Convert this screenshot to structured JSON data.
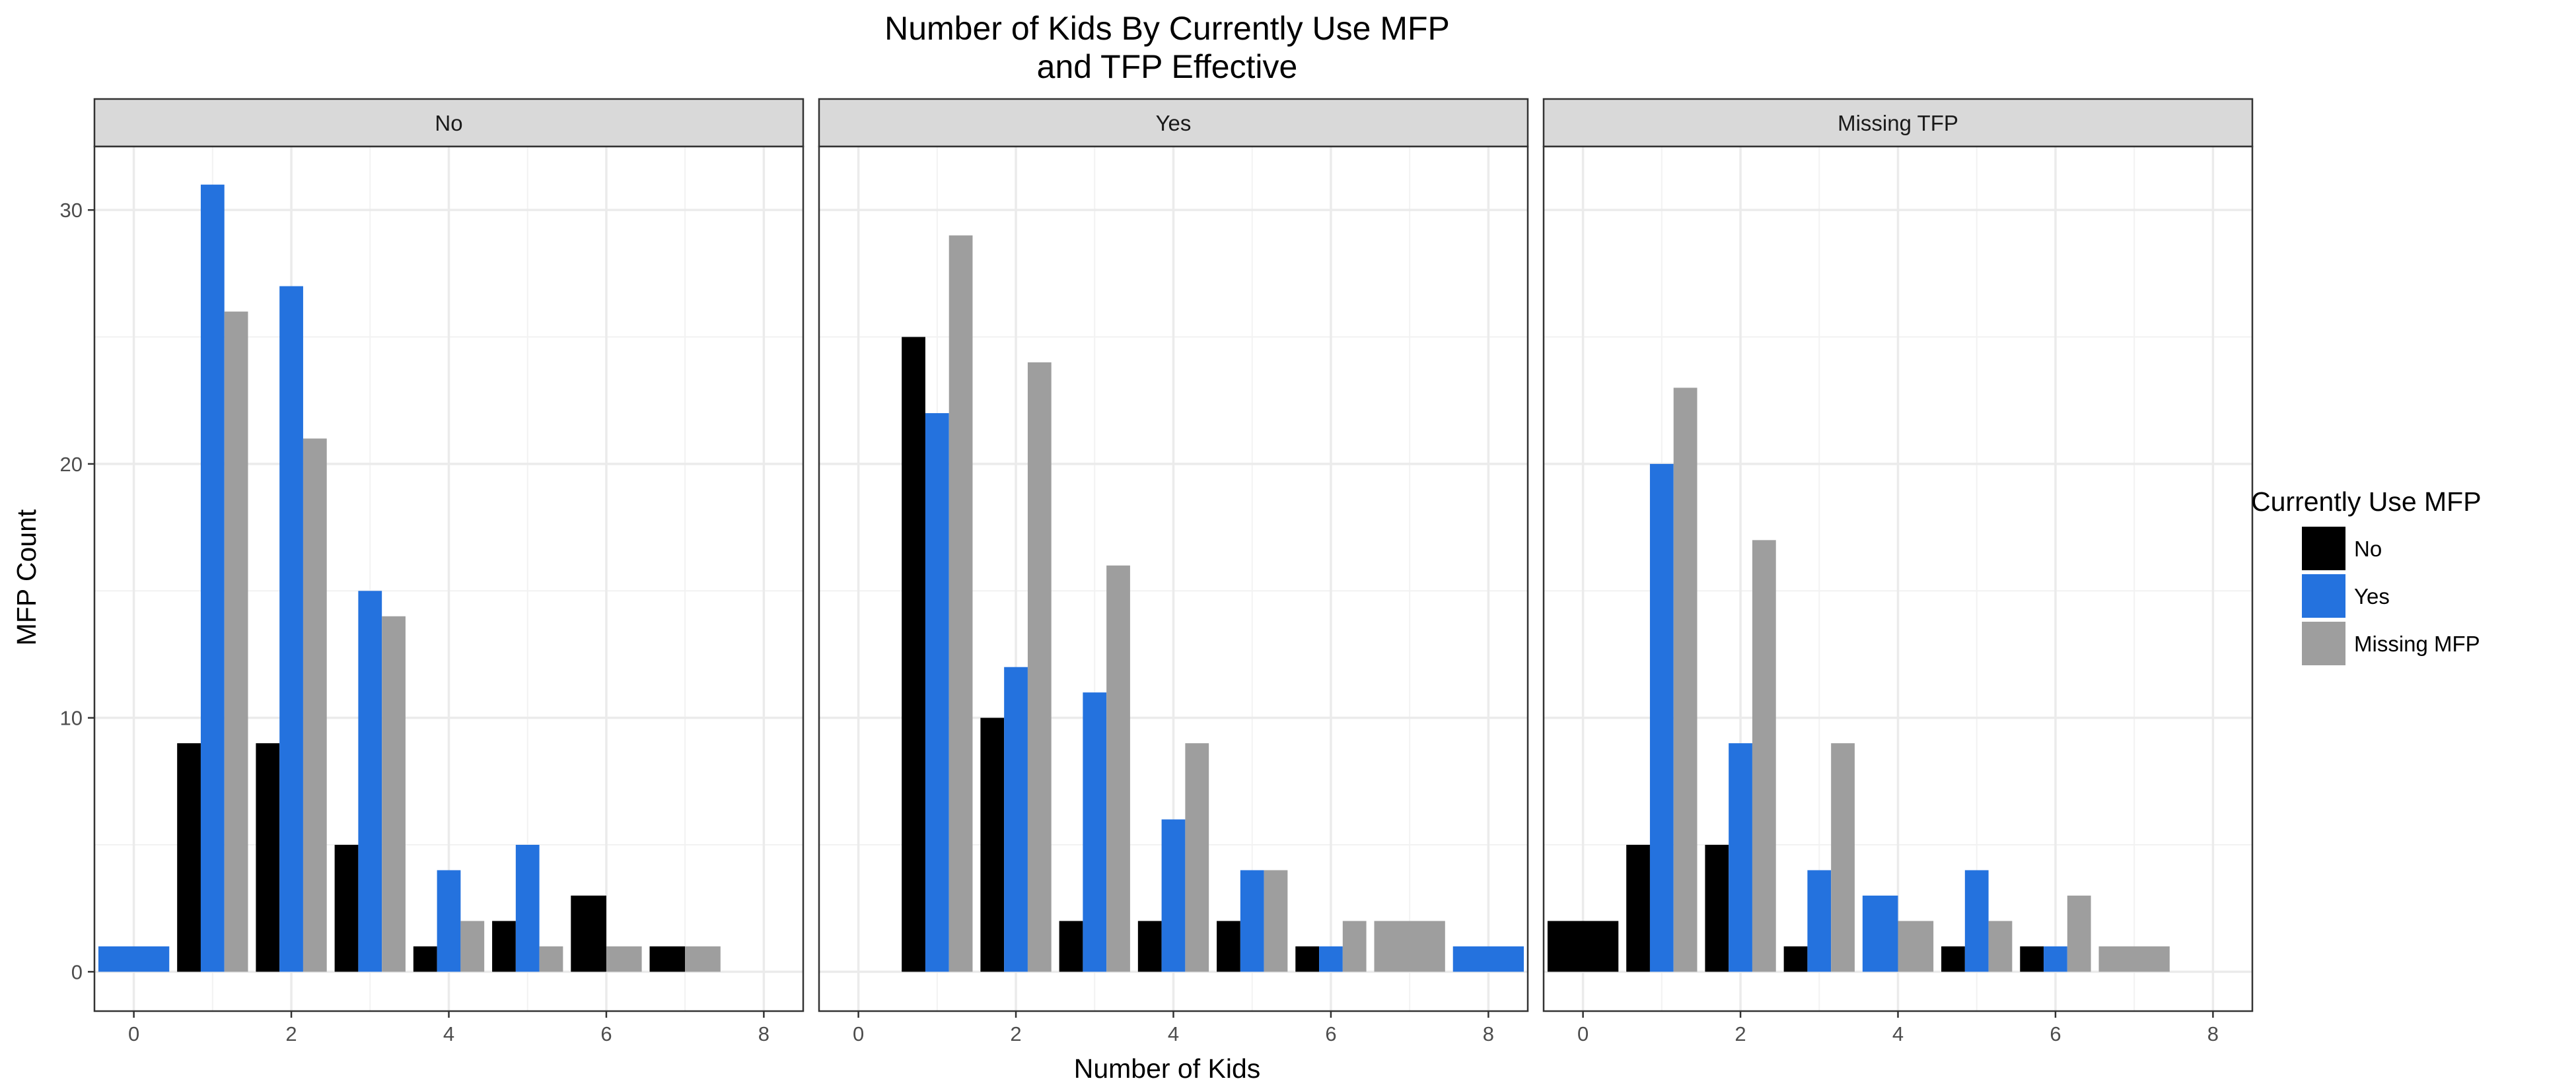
{
  "chart_data": {
    "type": "bar",
    "title_lines": [
      "Number of Kids By Currently Use MFP",
      "and TFP Effective"
    ],
    "xlabel": "Number of Kids",
    "ylabel": "MFP Count",
    "xlim": [
      -0.5,
      8.5
    ],
    "ylim": [
      -1.55,
      32.5
    ],
    "x_ticks": [
      0,
      2,
      4,
      6,
      8
    ],
    "y_ticks": [
      0,
      10,
      20,
      30
    ],
    "grid": true,
    "legend": {
      "title": "Currently Use MFP",
      "placement": "right",
      "entries": [
        {
          "label": "No",
          "color": "#000000"
        },
        {
          "label": "Yes",
          "color": "#2472DE"
        },
        {
          "label": "Missing MFP",
          "color": "#9E9E9E"
        }
      ]
    },
    "colors": {
      "No": "#000000",
      "Yes": "#2472DE",
      "Missing MFP": "#9E9E9E"
    },
    "facets": [
      {
        "label": "No",
        "bars": [
          {
            "x": 0,
            "width": 0.9,
            "group": "Yes",
            "value": 1
          },
          {
            "x": 0.7,
            "width": 0.3,
            "group": "No",
            "value": 9
          },
          {
            "x": 1.0,
            "width": 0.3,
            "group": "Yes",
            "value": 31
          },
          {
            "x": 1.3,
            "width": 0.3,
            "group": "Missing MFP",
            "value": 26
          },
          {
            "x": 1.7,
            "width": 0.3,
            "group": "No",
            "value": 9
          },
          {
            "x": 2.0,
            "width": 0.3,
            "group": "Yes",
            "value": 27
          },
          {
            "x": 2.3,
            "width": 0.3,
            "group": "Missing MFP",
            "value": 21
          },
          {
            "x": 2.7,
            "width": 0.3,
            "group": "No",
            "value": 5
          },
          {
            "x": 3.0,
            "width": 0.3,
            "group": "Yes",
            "value": 15
          },
          {
            "x": 3.3,
            "width": 0.3,
            "group": "Missing MFP",
            "value": 14
          },
          {
            "x": 3.7,
            "width": 0.3,
            "group": "No",
            "value": 1
          },
          {
            "x": 4.0,
            "width": 0.3,
            "group": "Yes",
            "value": 4
          },
          {
            "x": 4.3,
            "width": 0.3,
            "group": "Missing MFP",
            "value": 2
          },
          {
            "x": 4.7,
            "width": 0.3,
            "group": "No",
            "value": 2
          },
          {
            "x": 5.0,
            "width": 0.3,
            "group": "Yes",
            "value": 5
          },
          {
            "x": 5.3,
            "width": 0.3,
            "group": "Missing MFP",
            "value": 1
          },
          {
            "x": 5.775,
            "width": 0.45,
            "group": "No",
            "value": 3
          },
          {
            "x": 6.225,
            "width": 0.45,
            "group": "Missing MFP",
            "value": 1
          },
          {
            "x": 6.775,
            "width": 0.45,
            "group": "No",
            "value": 1
          },
          {
            "x": 7.225,
            "width": 0.45,
            "group": "Missing MFP",
            "value": 1
          }
        ]
      },
      {
        "label": "Yes",
        "bars": [
          {
            "x": 0.7,
            "width": 0.3,
            "group": "No",
            "value": 25
          },
          {
            "x": 1.0,
            "width": 0.3,
            "group": "Yes",
            "value": 22
          },
          {
            "x": 1.3,
            "width": 0.3,
            "group": "Missing MFP",
            "value": 29
          },
          {
            "x": 1.7,
            "width": 0.3,
            "group": "No",
            "value": 10
          },
          {
            "x": 2.0,
            "width": 0.3,
            "group": "Yes",
            "value": 12
          },
          {
            "x": 2.3,
            "width": 0.3,
            "group": "Missing MFP",
            "value": 24
          },
          {
            "x": 2.7,
            "width": 0.3,
            "group": "No",
            "value": 2
          },
          {
            "x": 3.0,
            "width": 0.3,
            "group": "Yes",
            "value": 11
          },
          {
            "x": 3.3,
            "width": 0.3,
            "group": "Missing MFP",
            "value": 16
          },
          {
            "x": 3.7,
            "width": 0.3,
            "group": "No",
            "value": 2
          },
          {
            "x": 4.0,
            "width": 0.3,
            "group": "Yes",
            "value": 6
          },
          {
            "x": 4.3,
            "width": 0.3,
            "group": "Missing MFP",
            "value": 9
          },
          {
            "x": 4.7,
            "width": 0.3,
            "group": "No",
            "value": 2
          },
          {
            "x": 5.0,
            "width": 0.3,
            "group": "Yes",
            "value": 4
          },
          {
            "x": 5.3,
            "width": 0.3,
            "group": "Missing MFP",
            "value": 4
          },
          {
            "x": 5.7,
            "width": 0.3,
            "group": "No",
            "value": 1
          },
          {
            "x": 6.0,
            "width": 0.3,
            "group": "Yes",
            "value": 1
          },
          {
            "x": 6.3,
            "width": 0.3,
            "group": "Missing MFP",
            "value": 2
          },
          {
            "x": 7.0,
            "width": 0.9,
            "group": "Missing MFP",
            "value": 2
          },
          {
            "x": 8.0,
            "width": 0.9,
            "group": "Yes",
            "value": 1
          }
        ]
      },
      {
        "label": "Missing TFP",
        "bars": [
          {
            "x": 0,
            "width": 0.9,
            "group": "No",
            "value": 2
          },
          {
            "x": 0.7,
            "width": 0.3,
            "group": "No",
            "value": 5
          },
          {
            "x": 1.0,
            "width": 0.3,
            "group": "Yes",
            "value": 20
          },
          {
            "x": 1.3,
            "width": 0.3,
            "group": "Missing MFP",
            "value": 23
          },
          {
            "x": 1.7,
            "width": 0.3,
            "group": "No",
            "value": 5
          },
          {
            "x": 2.0,
            "width": 0.3,
            "group": "Yes",
            "value": 9
          },
          {
            "x": 2.3,
            "width": 0.3,
            "group": "Missing MFP",
            "value": 17
          },
          {
            "x": 2.7,
            "width": 0.3,
            "group": "No",
            "value": 1
          },
          {
            "x": 3.0,
            "width": 0.3,
            "group": "Yes",
            "value": 4
          },
          {
            "x": 3.3,
            "width": 0.3,
            "group": "Missing MFP",
            "value": 9
          },
          {
            "x": 3.775,
            "width": 0.45,
            "group": "Yes",
            "value": 3
          },
          {
            "x": 4.225,
            "width": 0.45,
            "group": "Missing MFP",
            "value": 2
          },
          {
            "x": 4.7,
            "width": 0.3,
            "group": "No",
            "value": 1
          },
          {
            "x": 5.0,
            "width": 0.3,
            "group": "Yes",
            "value": 4
          },
          {
            "x": 5.3,
            "width": 0.3,
            "group": "Missing MFP",
            "value": 2
          },
          {
            "x": 5.7,
            "width": 0.3,
            "group": "No",
            "value": 1
          },
          {
            "x": 6.0,
            "width": 0.3,
            "group": "Yes",
            "value": 1
          },
          {
            "x": 6.3,
            "width": 0.3,
            "group": "Missing MFP",
            "value": 3
          },
          {
            "x": 7.0,
            "width": 0.9,
            "group": "Missing MFP",
            "value": 1
          }
        ]
      }
    ]
  }
}
